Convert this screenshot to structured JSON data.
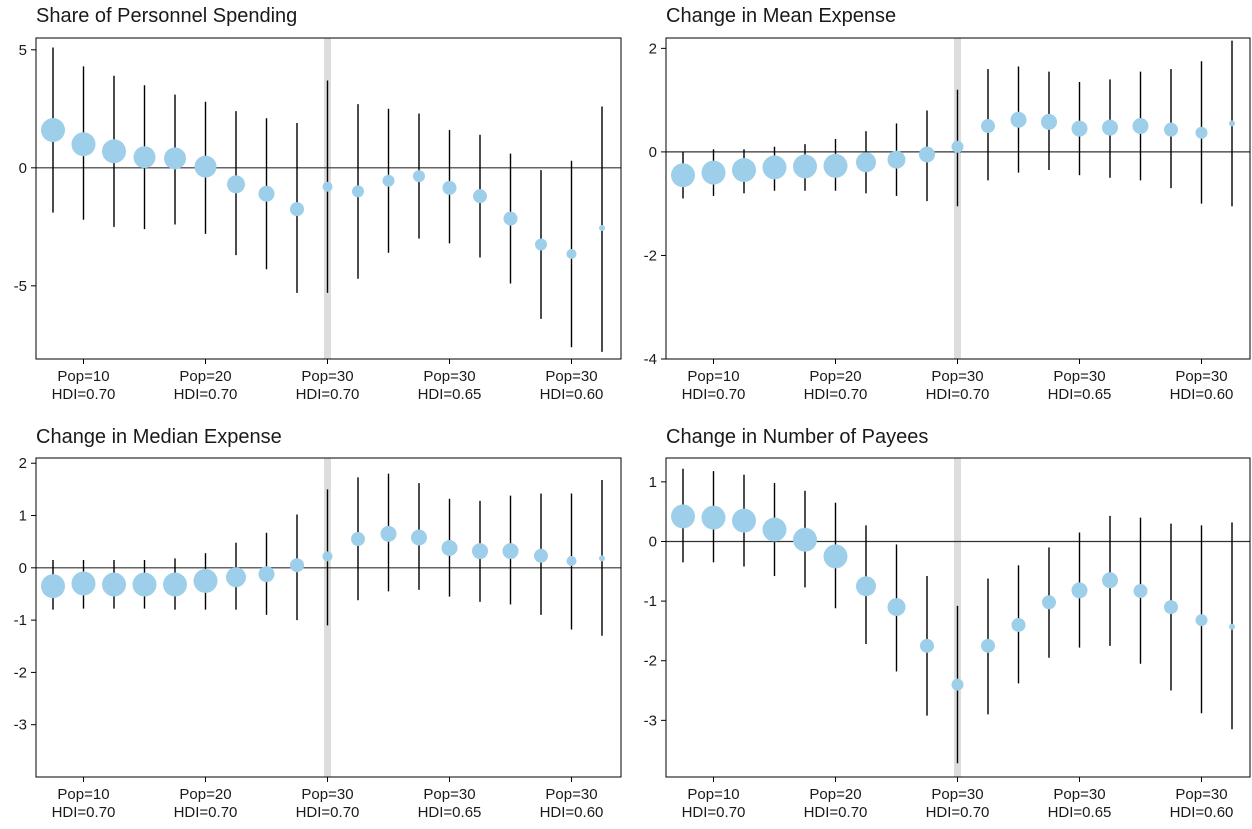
{
  "colors": {
    "point": "#9dcfea",
    "errorbar": "#000000",
    "highlight": "#dddddd",
    "axis": "#000000",
    "zero_line": "#333333"
  },
  "chart_data": [
    {
      "type": "scatter",
      "title": "Share of Personnel Spending",
      "grid": false,
      "ylim": [
        -8.1,
        5.5
      ],
      "yticks": [
        5,
        0,
        -5
      ],
      "ytick_labels": [
        "5",
        "0",
        "-5"
      ],
      "highlight_index": 9,
      "xtick_indices": [
        1,
        5,
        9,
        13,
        17
      ],
      "xtick_labels": [
        [
          "Pop=10",
          "HDI=0.70"
        ],
        [
          "Pop=20",
          "HDI=0.70"
        ],
        [
          "Pop=30",
          "HDI=0.70"
        ],
        [
          "Pop=30",
          "HDI=0.65"
        ],
        [
          "Pop=30",
          "HDI=0.60"
        ]
      ],
      "estimates": [
        1.6,
        1.0,
        0.7,
        0.45,
        0.4,
        0.05,
        -0.7,
        -1.1,
        -1.75,
        -0.8,
        -1.0,
        -0.55,
        -0.35,
        -0.85,
        -1.2,
        -2.15,
        -3.25,
        -3.65,
        -2.55
      ],
      "ci_low": [
        -1.9,
        -2.2,
        -2.5,
        -2.6,
        -2.4,
        -2.8,
        -3.7,
        -4.3,
        -5.3,
        -5.3,
        -4.7,
        -3.6,
        -3.0,
        -3.2,
        -3.8,
        -4.9,
        -6.4,
        -7.6,
        -7.8
      ],
      "ci_high": [
        5.1,
        4.3,
        3.9,
        3.5,
        3.1,
        2.8,
        2.4,
        2.1,
        1.9,
        3.7,
        2.7,
        2.5,
        2.3,
        1.6,
        1.4,
        0.6,
        -0.1,
        0.3,
        2.6
      ],
      "sizes": [
        12,
        12,
        12,
        11,
        11,
        11,
        9,
        8,
        7,
        5,
        6,
        6,
        6,
        7,
        7,
        7,
        6,
        5,
        3
      ]
    },
    {
      "type": "scatter",
      "title": "Change in Mean Expense",
      "grid": false,
      "ylim": [
        -4.0,
        2.2
      ],
      "yticks": [
        2,
        0,
        -2,
        -4
      ],
      "ytick_labels": [
        "2",
        "0",
        "-2",
        "-4"
      ],
      "highlight_index": 9,
      "xtick_indices": [
        1,
        5,
        9,
        13,
        17
      ],
      "xtick_labels": [
        [
          "Pop=10",
          "HDI=0.70"
        ],
        [
          "Pop=20",
          "HDI=0.70"
        ],
        [
          "Pop=30",
          "HDI=0.70"
        ],
        [
          "Pop=30",
          "HDI=0.65"
        ],
        [
          "Pop=30",
          "HDI=0.60"
        ]
      ],
      "estimates": [
        -0.45,
        -0.4,
        -0.35,
        -0.3,
        -0.28,
        -0.27,
        -0.2,
        -0.15,
        -0.05,
        0.1,
        0.5,
        0.62,
        0.58,
        0.45,
        0.47,
        0.5,
        0.43,
        0.37,
        0.55
      ],
      "ci_low": [
        -0.9,
        -0.85,
        -0.8,
        -0.75,
        -0.75,
        -0.75,
        -0.8,
        -0.85,
        -0.95,
        -1.05,
        -0.55,
        -0.4,
        -0.35,
        -0.45,
        -0.5,
        -0.55,
        -0.7,
        -1.0,
        -1.05
      ],
      "ci_high": [
        0.0,
        0.05,
        0.05,
        0.1,
        0.15,
        0.25,
        0.4,
        0.55,
        0.8,
        1.2,
        1.6,
        1.65,
        1.55,
        1.35,
        1.4,
        1.55,
        1.6,
        1.75,
        2.15
      ],
      "sizes": [
        12,
        12,
        12,
        12,
        12,
        12,
        10,
        9,
        8,
        6,
        7,
        8,
        8,
        8,
        8,
        8,
        7,
        6,
        3
      ]
    },
    {
      "type": "scatter",
      "title": "Change in Median Expense",
      "grid": false,
      "ylim": [
        -4.0,
        2.1
      ],
      "yticks": [
        2,
        1,
        0,
        -1,
        -2,
        -3
      ],
      "ytick_labels": [
        "2",
        "1",
        "0",
        "-1",
        "-2",
        "-3"
      ],
      "highlight_index": 9,
      "xtick_indices": [
        1,
        5,
        9,
        13,
        17
      ],
      "xtick_labels": [
        [
          "Pop=10",
          "HDI=0.70"
        ],
        [
          "Pop=20",
          "HDI=0.70"
        ],
        [
          "Pop=30",
          "HDI=0.70"
        ],
        [
          "Pop=30",
          "HDI=0.65"
        ],
        [
          "Pop=30",
          "HDI=0.60"
        ]
      ],
      "estimates": [
        -0.35,
        -0.3,
        -0.32,
        -0.32,
        -0.32,
        -0.25,
        -0.18,
        -0.12,
        0.05,
        0.22,
        0.55,
        0.65,
        0.58,
        0.38,
        0.32,
        0.32,
        0.23,
        0.13,
        0.18
      ],
      "ci_low": [
        -0.8,
        -0.78,
        -0.78,
        -0.78,
        -0.8,
        -0.8,
        -0.8,
        -0.9,
        -1.0,
        -1.1,
        -0.62,
        -0.45,
        -0.42,
        -0.55,
        -0.65,
        -0.7,
        -0.9,
        -1.18,
        -1.3
      ],
      "ci_high": [
        0.15,
        0.15,
        0.15,
        0.15,
        0.18,
        0.28,
        0.48,
        0.67,
        1.02,
        1.5,
        1.73,
        1.8,
        1.62,
        1.32,
        1.28,
        1.38,
        1.42,
        1.42,
        1.68
      ],
      "sizes": [
        12,
        12,
        12,
        12,
        12,
        12,
        10,
        8,
        7,
        5,
        7,
        8,
        8,
        8,
        8,
        8,
        7,
        5,
        3
      ]
    },
    {
      "type": "scatter",
      "title": "Change in Number of Payees",
      "grid": false,
      "ylim": [
        -3.95,
        1.4
      ],
      "yticks": [
        1,
        0,
        -1,
        -2,
        -3
      ],
      "ytick_labels": [
        "1",
        "0",
        "-1",
        "-2",
        "-3"
      ],
      "highlight_index": 9,
      "xtick_indices": [
        1,
        5,
        9,
        13,
        17
      ],
      "xtick_labels": [
        [
          "Pop=10",
          "HDI=0.70"
        ],
        [
          "Pop=20",
          "HDI=0.70"
        ],
        [
          "Pop=30",
          "HDI=0.70"
        ],
        [
          "Pop=30",
          "HDI=0.65"
        ],
        [
          "Pop=30",
          "HDI=0.60"
        ]
      ],
      "estimates": [
        0.42,
        0.4,
        0.35,
        0.2,
        0.03,
        -0.25,
        -0.75,
        -1.1,
        -1.75,
        -2.4,
        -1.75,
        -1.4,
        -1.02,
        -0.82,
        -0.65,
        -0.83,
        -1.1,
        -1.32,
        -1.43
      ],
      "ci_low": [
        -0.35,
        -0.35,
        -0.42,
        -0.58,
        -0.77,
        -1.12,
        -1.72,
        -2.18,
        -2.92,
        -3.72,
        -2.9,
        -2.38,
        -1.95,
        -1.78,
        -1.75,
        -2.05,
        -2.5,
        -2.88,
        -3.15
      ],
      "ci_high": [
        1.22,
        1.18,
        1.12,
        0.98,
        0.85,
        0.65,
        0.27,
        -0.05,
        -0.58,
        -1.08,
        -0.62,
        -0.4,
        -0.1,
        0.15,
        0.43,
        0.4,
        0.3,
        0.27,
        0.32
      ],
      "sizes": [
        12,
        12,
        12,
        12,
        12,
        12,
        10,
        9,
        7,
        6,
        7,
        7,
        7,
        8,
        8,
        7,
        7,
        6,
        3
      ]
    }
  ]
}
